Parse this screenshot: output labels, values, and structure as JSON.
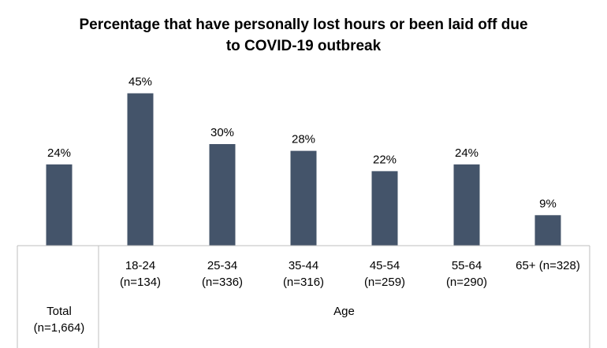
{
  "chart_data": {
    "type": "bar",
    "title_lines": [
      "Percentage that have personally lost hours or been laid off due",
      "to COVID-19 outbreak"
    ],
    "categories": [
      [
        "Total",
        "(n=1,664)"
      ],
      [
        "18-24",
        "(n=134)"
      ],
      [
        "25-34",
        "(n=336)"
      ],
      [
        "35-44",
        "(n=316)"
      ],
      [
        "45-54",
        "(n=259)"
      ],
      [
        "55-64",
        "(n=290)"
      ],
      [
        "65+ (n=328)"
      ]
    ],
    "values": [
      24,
      45,
      30,
      28,
      22,
      24,
      9
    ],
    "data_labels": [
      "24%",
      "45%",
      "30%",
      "28%",
      "22%",
      "24%",
      "9%"
    ],
    "group_label": "Age",
    "value_unit": "%",
    "ylim": [
      0,
      50
    ],
    "grid": false,
    "legend": "none",
    "bar_color": "#44546A",
    "axis_color": "#BFBFBF"
  }
}
